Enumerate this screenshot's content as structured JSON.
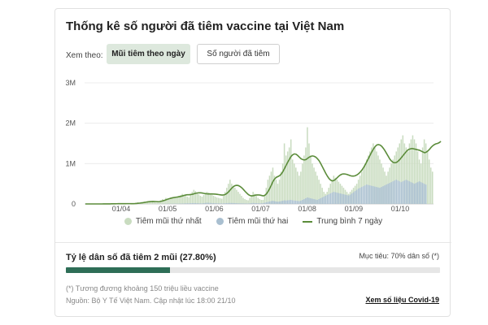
{
  "header": {
    "title": "Thống kê số người đã tiêm vaccine tại Việt Nam"
  },
  "view_selector": {
    "label": "Xem theo:",
    "options": [
      {
        "label": "Mũi tiêm theo ngày",
        "selected": true
      },
      {
        "label": "Số người đã tiêm",
        "selected": false
      }
    ]
  },
  "chart_data": {
    "type": "bar",
    "y_ticks": [
      "3M",
      "2M",
      "1M",
      "0"
    ],
    "ylim": [
      0,
      3000000
    ],
    "x_ticks": [
      "01/04",
      "01/05",
      "01/06",
      "01/07",
      "01/08",
      "01/09",
      "01/10"
    ],
    "legend_placement": "bottom",
    "series": [
      {
        "name": "Tiêm mũi thứ nhất",
        "color": "#c9dcc0",
        "values": [
          0,
          0,
          0,
          0,
          0,
          0,
          0,
          0,
          0,
          0,
          2000,
          3000,
          4000,
          3000,
          5000,
          4000,
          6000,
          5000,
          8000,
          6000,
          7000,
          5000,
          6000,
          8000,
          7000,
          9000,
          8000,
          6000,
          5000,
          7000,
          20000,
          30000,
          40000,
          35000,
          50000,
          45000,
          60000,
          55000,
          70000,
          60000,
          65000,
          50000,
          40000,
          35000,
          30000,
          60000,
          90000,
          120000,
          100000,
          150000,
          130000,
          140000,
          160000,
          170000,
          150000,
          180000,
          160000,
          200000,
          220000,
          250000,
          230000,
          210000,
          180000,
          160000,
          250000,
          300000,
          350000,
          320000,
          280000,
          240000,
          200000,
          180000,
          220000,
          260000,
          300000,
          280000,
          250000,
          230000,
          200000,
          180000,
          160000,
          150000,
          140000,
          130000,
          200000,
          300000,
          400000,
          500000,
          600000,
          500000,
          450000,
          400000,
          350000,
          300000,
          250000,
          200000,
          150000,
          120000,
          100000,
          90000,
          150000,
          200000,
          300000,
          250000,
          200000,
          150000,
          120000,
          100000,
          100000,
          200000,
          400000,
          600000,
          700000,
          800000,
          900000,
          700000,
          600000,
          500000,
          600000,
          800000,
          1000000,
          1500000,
          1200000,
          1300000,
          1400000,
          1600000,
          1100000,
          1000000,
          900000,
          800000,
          700000,
          800000,
          1000000,
          1200000,
          1400000,
          1900000,
          1500000,
          1200000,
          1000000,
          900000,
          800000,
          700000,
          600000,
          500000,
          400000,
          300000,
          250000,
          300000,
          400000,
          500000,
          600000,
          700000,
          650000,
          600000,
          550000,
          500000,
          450000,
          400000,
          350000,
          300000,
          250000,
          300000,
          350000,
          400000,
          450000,
          500000,
          600000,
          700000,
          800000,
          900000,
          1000000,
          1100000,
          1200000,
          1300000,
          1400000,
          1500000,
          1400000,
          1300000,
          1200000,
          1100000,
          1000000,
          900000,
          800000,
          700000,
          800000,
          900000,
          1000000,
          1100000,
          1200000,
          1300000,
          1400000,
          1500000,
          1600000,
          1700000,
          1500000,
          1400000,
          1300000,
          1500000,
          1600000,
          1700000,
          1600000,
          1500000,
          1300000,
          1100000,
          1000000,
          1400000,
          1600000,
          1500000,
          1300000,
          1100000,
          900000,
          800000
        ]
      },
      {
        "name": "Tiêm mũi thứ hai",
        "color": "#a9bfd0",
        "values": [
          0,
          0,
          0,
          0,
          0,
          0,
          0,
          0,
          0,
          0,
          0,
          0,
          0,
          0,
          0,
          0,
          0,
          0,
          0,
          0,
          0,
          0,
          0,
          0,
          0,
          0,
          0,
          0,
          0,
          0,
          0,
          0,
          0,
          0,
          0,
          0,
          0,
          0,
          0,
          0,
          1000,
          2000,
          3000,
          2000,
          3000,
          4000,
          3000,
          4000,
          5000,
          4000,
          5000,
          6000,
          5000,
          6000,
          7000,
          8000,
          7000,
          8000,
          9000,
          10000,
          12000,
          14000,
          15000,
          16000,
          18000,
          20000,
          22000,
          20000,
          18000,
          16000,
          15000,
          14000,
          20000,
          25000,
          30000,
          28000,
          25000,
          22000,
          20000,
          18000,
          16000,
          15000,
          14000,
          13000,
          15000,
          18000,
          20000,
          22000,
          25000,
          24000,
          22000,
          20000,
          18000,
          16000,
          15000,
          14000,
          13000,
          12000,
          11000,
          10000,
          15000,
          20000,
          25000,
          22000,
          20000,
          18000,
          16000,
          15000,
          20000,
          30000,
          40000,
          50000,
          60000,
          70000,
          80000,
          70000,
          60000,
          55000,
          60000,
          70000,
          80000,
          90000,
          85000,
          90000,
          95000,
          100000,
          90000,
          85000,
          80000,
          75000,
          70000,
          80000,
          100000,
          120000,
          140000,
          160000,
          150000,
          140000,
          130000,
          120000,
          110000,
          100000,
          120000,
          140000,
          160000,
          180000,
          200000,
          220000,
          240000,
          260000,
          280000,
          300000,
          290000,
          280000,
          270000,
          260000,
          250000,
          240000,
          230000,
          220000,
          210000,
          230000,
          260000,
          290000,
          320000,
          350000,
          380000,
          400000,
          420000,
          440000,
          460000,
          480000,
          470000,
          460000,
          450000,
          440000,
          430000,
          420000,
          410000,
          400000,
          420000,
          440000,
          460000,
          480000,
          500000,
          520000,
          540000,
          560000,
          580000,
          600000,
          580000,
          560000,
          540000,
          560000,
          580000,
          600000,
          580000,
          560000,
          540000,
          520000,
          500000,
          520000,
          540000,
          560000,
          540000,
          520000,
          500000,
          480000
        ]
      },
      {
        "name": "Trung bình 7 ngày",
        "color": "#5b8c3a",
        "values": [
          0,
          0,
          0,
          0,
          0,
          0,
          0,
          0,
          0,
          0,
          300,
          700,
          1000,
          1400,
          1800,
          2300,
          2800,
          3500,
          4300,
          5000,
          5600,
          6100,
          6500,
          6900,
          7100,
          7400,
          7600,
          7400,
          7200,
          7000,
          9000,
          12000,
          16000,
          20000,
          25000,
          31000,
          38000,
          45000,
          52000,
          57000,
          60000,
          61000,
          60000,
          58000,
          55000,
          58000,
          65000,
          76000,
          89000,
          104000,
          118000,
          130000,
          142000,
          152000,
          160000,
          166000,
          172000,
          180000,
          188000,
          200000,
          212000,
          222000,
          228000,
          228000,
          232000,
          240000,
          252000,
          264000,
          272000,
          276000,
          275000,
          270000,
          262000,
          255000,
          250000,
          248000,
          248000,
          248000,
          246000,
          243000,
          238000,
          232000,
          226000,
          220000,
          222000,
          236000,
          262000,
          300000,
          348000,
          395000,
          432000,
          455000,
          462000,
          455000,
          432000,
          400000,
          358000,
          312000,
          270000,
          232000,
          208000,
          200000,
          205000,
          215000,
          222000,
          224000,
          220000,
          210000,
          200000,
          214000,
          250000,
          310000,
          385000,
          470000,
          560000,
          620000,
          660000,
          680000,
          700000,
          740000,
          800000,
          880000,
          960000,
          1040000,
          1110000,
          1180000,
          1220000,
          1240000,
          1230000,
          1200000,
          1160000,
          1120000,
          1100000,
          1090000,
          1100000,
          1130000,
          1160000,
          1180000,
          1190000,
          1180000,
          1160000,
          1120000,
          1070000,
          1000000,
          920000,
          840000,
          760000,
          690000,
          630000,
          590000,
          570000,
          580000,
          610000,
          650000,
          690000,
          720000,
          740000,
          745000,
          740000,
          730000,
          715000,
          700000,
          690000,
          690000,
          700000,
          720000,
          750000,
          790000,
          840000,
          900000,
          970000,
          1050000,
          1130000,
          1210000,
          1290000,
          1360000,
          1420000,
          1460000,
          1470000,
          1460000,
          1430000,
          1380000,
          1320000,
          1250000,
          1180000,
          1110000,
          1060000,
          1030000,
          1020000,
          1030000,
          1060000,
          1100000,
          1150000,
          1200000,
          1250000,
          1300000,
          1340000,
          1360000,
          1370000,
          1370000,
          1360000,
          1350000,
          1340000,
          1330000,
          1310000,
          1290000,
          1270000,
          1280000,
          1310000,
          1350000,
          1400000,
          1440000,
          1470000,
          1490000,
          1500000,
          1520000,
          1550000
        ]
      }
    ]
  },
  "progress": {
    "label": "Tỷ lệ dân số đã tiêm 2 mũi (27.80%)",
    "value_percent": 27.8,
    "target_label": "Mục tiêu: 70% dân số (*)",
    "color": "#2e6e57"
  },
  "footer": {
    "footnote": "(*) Tương đương khoảng 150 triệu liều vaccine",
    "source": "Nguồn: Bộ Y Tế Việt Nam. Cập nhật lúc 18:00 21/10",
    "link_label": "Xem số liệu Covid-19"
  }
}
